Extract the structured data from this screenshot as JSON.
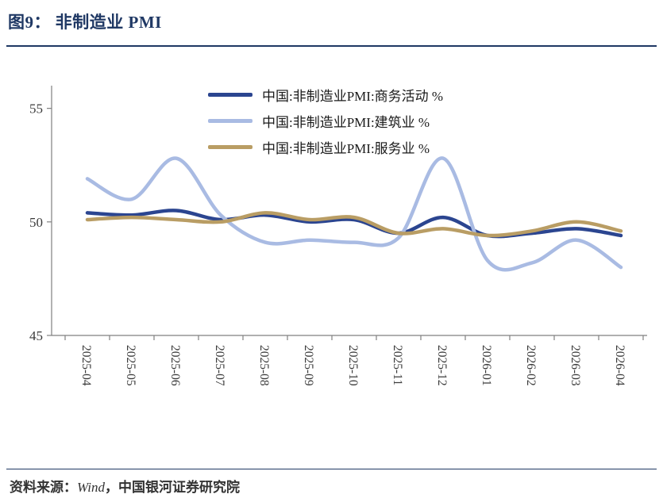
{
  "header": {
    "title": "图9： 非制造业 PMI"
  },
  "footer": {
    "prefix": "资料来源：",
    "vendor": "Wind",
    "suffix": "，中国银河证券研究院"
  },
  "colors": {
    "title_navy": "#1F3864",
    "axis": "#808080",
    "tick_label": "#3B3B3B"
  },
  "chart_data": {
    "type": "line",
    "smooth": true,
    "x": [
      "2025-04",
      "2025-05",
      "2025-06",
      "2025-07",
      "2025-08",
      "2025-09",
      "2025-10",
      "2025-11",
      "2025-12",
      "2026-01",
      "2026-02",
      "2026-03",
      "2026-04"
    ],
    "series": [
      {
        "name": "中国:非制造业PMI:商务活动 %",
        "color": "#2B4590",
        "values": [
          50.4,
          50.3,
          50.5,
          50.1,
          50.3,
          50.0,
          50.1,
          49.5,
          50.2,
          49.4,
          49.5,
          49.7,
          49.4
        ]
      },
      {
        "name": "中国:非制造业PMI:建筑业 %",
        "color": "#A9BBE3",
        "values": [
          51.9,
          51.0,
          52.8,
          50.3,
          49.1,
          49.2,
          49.1,
          49.3,
          52.8,
          48.3,
          48.2,
          49.2,
          48.0
        ]
      },
      {
        "name": "中国:非制造业PMI:服务业 %",
        "color": "#B99D64",
        "values": [
          50.1,
          50.2,
          50.1,
          50.0,
          50.4,
          50.1,
          50.2,
          49.5,
          49.7,
          49.4,
          49.6,
          50.0,
          49.6
        ]
      }
    ],
    "ylim": [
      45,
      56
    ],
    "yticks": [
      45,
      50,
      55
    ],
    "ylabel": "",
    "xlabel": "",
    "grid": false,
    "legend_position": "top-center"
  }
}
